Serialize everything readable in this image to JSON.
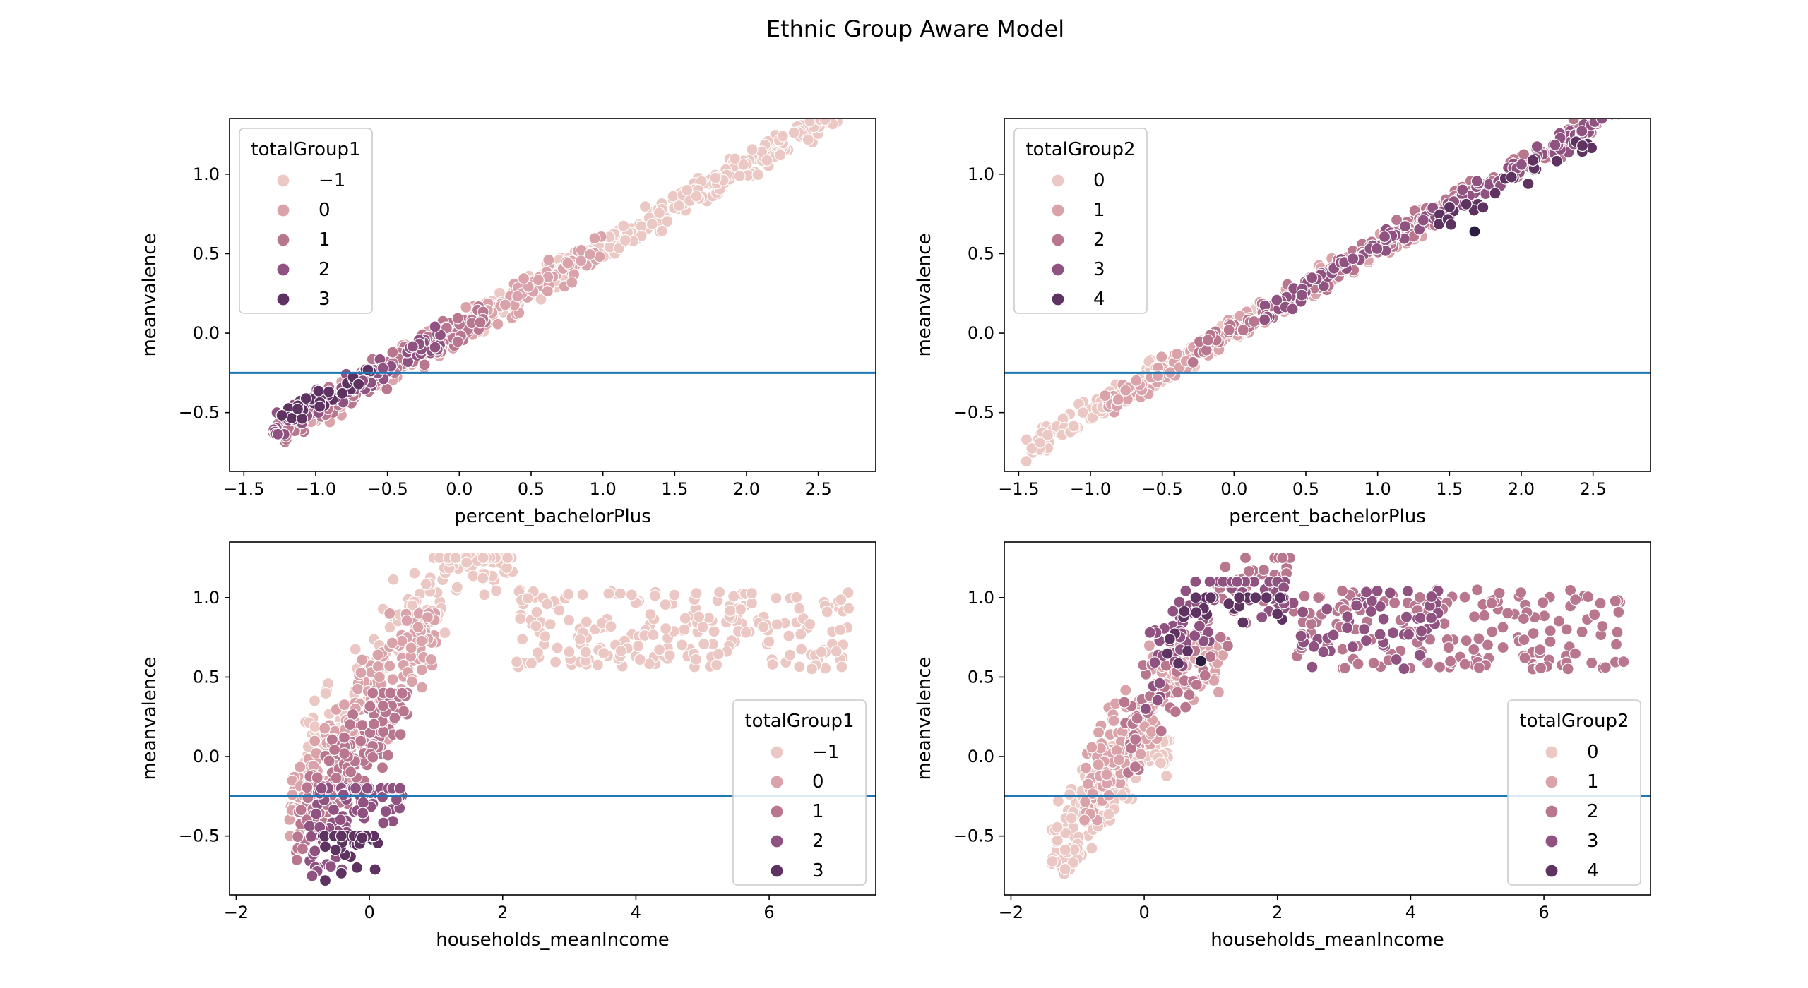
{
  "figure_title": "Ethnic Group Aware Model",
  "palette": {
    "-1": "#ebc8c4",
    "0": "#d9a3a9",
    "1": "#b9778f",
    "2": "#8f5281",
    "3": "#5e3362",
    "4": "#2c1e3e"
  },
  "hline_color": "#1f77b4",
  "chart_data": [
    {
      "type": "scatter",
      "title": "",
      "xlabel": "percent_bachelorPlus",
      "ylabel": "meanvalence",
      "xlim": [
        -1.6,
        2.9
      ],
      "ylim": [
        -0.87,
        1.35
      ],
      "xticks": [
        -1.5,
        -1.0,
        -0.5,
        0.0,
        0.5,
        1.0,
        1.5,
        2.0,
        2.5
      ],
      "xtick_labels": [
        "−1.5",
        "−1.0",
        "−0.5",
        "0.0",
        "0.5",
        "1.0",
        "1.5",
        "2.0",
        "2.5"
      ],
      "yticks": [
        -0.5,
        0.0,
        0.5,
        1.0
      ],
      "ytick_labels": [
        "−0.5",
        "0.0",
        "0.5",
        "1.0"
      ],
      "hline": -0.25,
      "grid": false,
      "legend": {
        "title": "totalGroup1",
        "placement": "upper left",
        "entries": [
          {
            "label": "−1",
            "level": "-1"
          },
          {
            "label": "0",
            "level": "0"
          },
          {
            "label": "1",
            "level": "1"
          },
          {
            "label": "2",
            "level": "2"
          },
          {
            "label": "3",
            "level": "3"
          }
        ]
      },
      "series": [
        {
          "level": "-1",
          "center_x": [
            -0.1,
            2.7
          ],
          "slope": 0.52,
          "noise": 0.06,
          "count": 340
        },
        {
          "level": "0",
          "center_x": [
            -1.2,
            1.0
          ],
          "slope": 0.52,
          "noise": 0.07,
          "count": 180
        },
        {
          "level": "1",
          "center_x": [
            -1.3,
            0.2
          ],
          "slope": 0.52,
          "noise": 0.07,
          "count": 130
        },
        {
          "level": "2",
          "center_x": [
            -1.3,
            -0.1
          ],
          "slope": 0.48,
          "noise": 0.07,
          "count": 80
        },
        {
          "level": "3",
          "center_x": [
            -1.3,
            -0.6
          ],
          "slope": 0.45,
          "noise": 0.05,
          "count": 30
        }
      ],
      "relation": "y ≈ slope·x + 0.02"
    },
    {
      "type": "scatter",
      "title": "",
      "xlabel": "percent_bachelorPlus",
      "ylabel": "meanvalence",
      "xlim": [
        -1.6,
        2.9
      ],
      "ylim": [
        -0.87,
        1.35
      ],
      "xticks": [
        -1.5,
        -1.0,
        -0.5,
        0.0,
        0.5,
        1.0,
        1.5,
        2.0,
        2.5
      ],
      "xtick_labels": [
        "−1.5",
        "−1.0",
        "−0.5",
        "0.0",
        "0.5",
        "1.0",
        "1.5",
        "2.0",
        "2.5"
      ],
      "yticks": [
        -0.5,
        0.0,
        0.5,
        1.0
      ],
      "ytick_labels": [
        "−0.5",
        "0.0",
        "0.5",
        "1.0"
      ],
      "hline": -0.25,
      "grid": false,
      "legend": {
        "title": "totalGroup2",
        "placement": "upper left",
        "entries": [
          {
            "label": "0",
            "level": "-1"
          },
          {
            "label": "1",
            "level": "0"
          },
          {
            "label": "2",
            "level": "1"
          },
          {
            "label": "3",
            "level": "2"
          },
          {
            "label": "4",
            "level": "3"
          }
        ]
      },
      "series": [
        {
          "level": "-1",
          "center_x": [
            -1.45,
            0.2
          ],
          "slope": 0.52,
          "noise": 0.06,
          "count": 170
        },
        {
          "level": "0",
          "center_x": [
            -0.9,
            1.6
          ],
          "slope": 0.52,
          "noise": 0.06,
          "count": 200
        },
        {
          "level": "1",
          "center_x": [
            -0.3,
            2.7
          ],
          "slope": 0.52,
          "noise": 0.06,
          "count": 200
        },
        {
          "level": "2",
          "center_x": [
            0.2,
            2.7
          ],
          "slope": 0.52,
          "noise": 0.05,
          "count": 140
        },
        {
          "level": "3",
          "center_x": [
            1.4,
            2.5
          ],
          "slope": 0.48,
          "noise": 0.04,
          "count": 25
        },
        {
          "level": "4",
          "center_x": [
            1.65,
            1.7
          ],
          "slope": 0.37,
          "noise": 0.0,
          "count": 1
        }
      ],
      "relation": "y ≈ slope·x + 0.02"
    },
    {
      "type": "scatter",
      "title": "",
      "xlabel": "households_meanIncome",
      "ylabel": "meanvalence",
      "xlim": [
        -2.1,
        7.6
      ],
      "ylim": [
        -0.87,
        1.35
      ],
      "xticks": [
        -2,
        0,
        2,
        4,
        6
      ],
      "xtick_labels": [
        "−2",
        "0",
        "2",
        "4",
        "6"
      ],
      "yticks": [
        -0.5,
        0.0,
        0.5,
        1.0
      ],
      "ytick_labels": [
        "−0.5",
        "0.0",
        "0.5",
        "1.0"
      ],
      "hline": -0.25,
      "grid": false,
      "legend": {
        "title": "totalGroup1",
        "placement": "lower right",
        "entries": [
          {
            "label": "−1",
            "level": "-1"
          },
          {
            "label": "0",
            "level": "0"
          },
          {
            "label": "1",
            "level": "1"
          },
          {
            "label": "2",
            "level": "2"
          },
          {
            "label": "3",
            "level": "3"
          }
        ]
      },
      "series": [
        {
          "level": "-1",
          "center_x": [
            -1.0,
            7.2
          ],
          "y_range": [
            -0.2,
            1.25
          ],
          "count": 380
        },
        {
          "level": "0",
          "center_x": [
            -1.2,
            1.0
          ],
          "y_range": [
            -0.5,
            0.9
          ],
          "count": 220
        },
        {
          "level": "1",
          "center_x": [
            -1.1,
            0.6
          ],
          "y_range": [
            -0.65,
            0.4
          ],
          "count": 150
        },
        {
          "level": "2",
          "center_x": [
            -0.9,
            0.5
          ],
          "y_range": [
            -0.75,
            -0.2
          ],
          "count": 90
        },
        {
          "level": "3",
          "center_x": [
            -0.7,
            0.2
          ],
          "y_range": [
            -0.78,
            -0.5
          ],
          "count": 30
        }
      ]
    },
    {
      "type": "scatter",
      "title": "",
      "xlabel": "households_meanIncome",
      "ylabel": "meanvalence",
      "xlim": [
        -2.1,
        7.6
      ],
      "ylim": [
        -0.87,
        1.35
      ],
      "xticks": [
        -2,
        0,
        2,
        4,
        6
      ],
      "xtick_labels": [
        "−2",
        "0",
        "2",
        "4",
        "6"
      ],
      "yticks": [
        -0.5,
        0.0,
        0.5,
        1.0
      ],
      "ytick_labels": [
        "−0.5",
        "0.0",
        "0.5",
        "1.0"
      ],
      "hline": -0.25,
      "grid": false,
      "legend": {
        "title": "totalGroup2",
        "placement": "lower right",
        "entries": [
          {
            "label": "0",
            "level": "-1"
          },
          {
            "label": "1",
            "level": "0"
          },
          {
            "label": "2",
            "level": "1"
          },
          {
            "label": "3",
            "level": "2"
          },
          {
            "label": "4",
            "level": "3"
          }
        ]
      },
      "series": [
        {
          "level": "-1",
          "center_x": [
            -1.4,
            0.4
          ],
          "y_range": [
            -0.78,
            0.1
          ],
          "count": 190
        },
        {
          "level": "0",
          "center_x": [
            -0.9,
            1.2
          ],
          "y_range": [
            -0.4,
            0.7
          ],
          "count": 210
        },
        {
          "level": "1",
          "center_x": [
            -0.3,
            7.2
          ],
          "y_range": [
            -0.1,
            1.25
          ],
          "count": 250
        },
        {
          "level": "2",
          "center_x": [
            0.0,
            4.5
          ],
          "y_range": [
            0.3,
            1.1
          ],
          "count": 130
        },
        {
          "level": "3",
          "center_x": [
            0.3,
            2.2
          ],
          "y_range": [
            0.5,
            1.0
          ],
          "count": 30
        },
        {
          "level": "4",
          "center_x": [
            0.8,
            0.9
          ],
          "y_range": [
            0.6,
            0.62
          ],
          "count": 1
        }
      ]
    }
  ]
}
